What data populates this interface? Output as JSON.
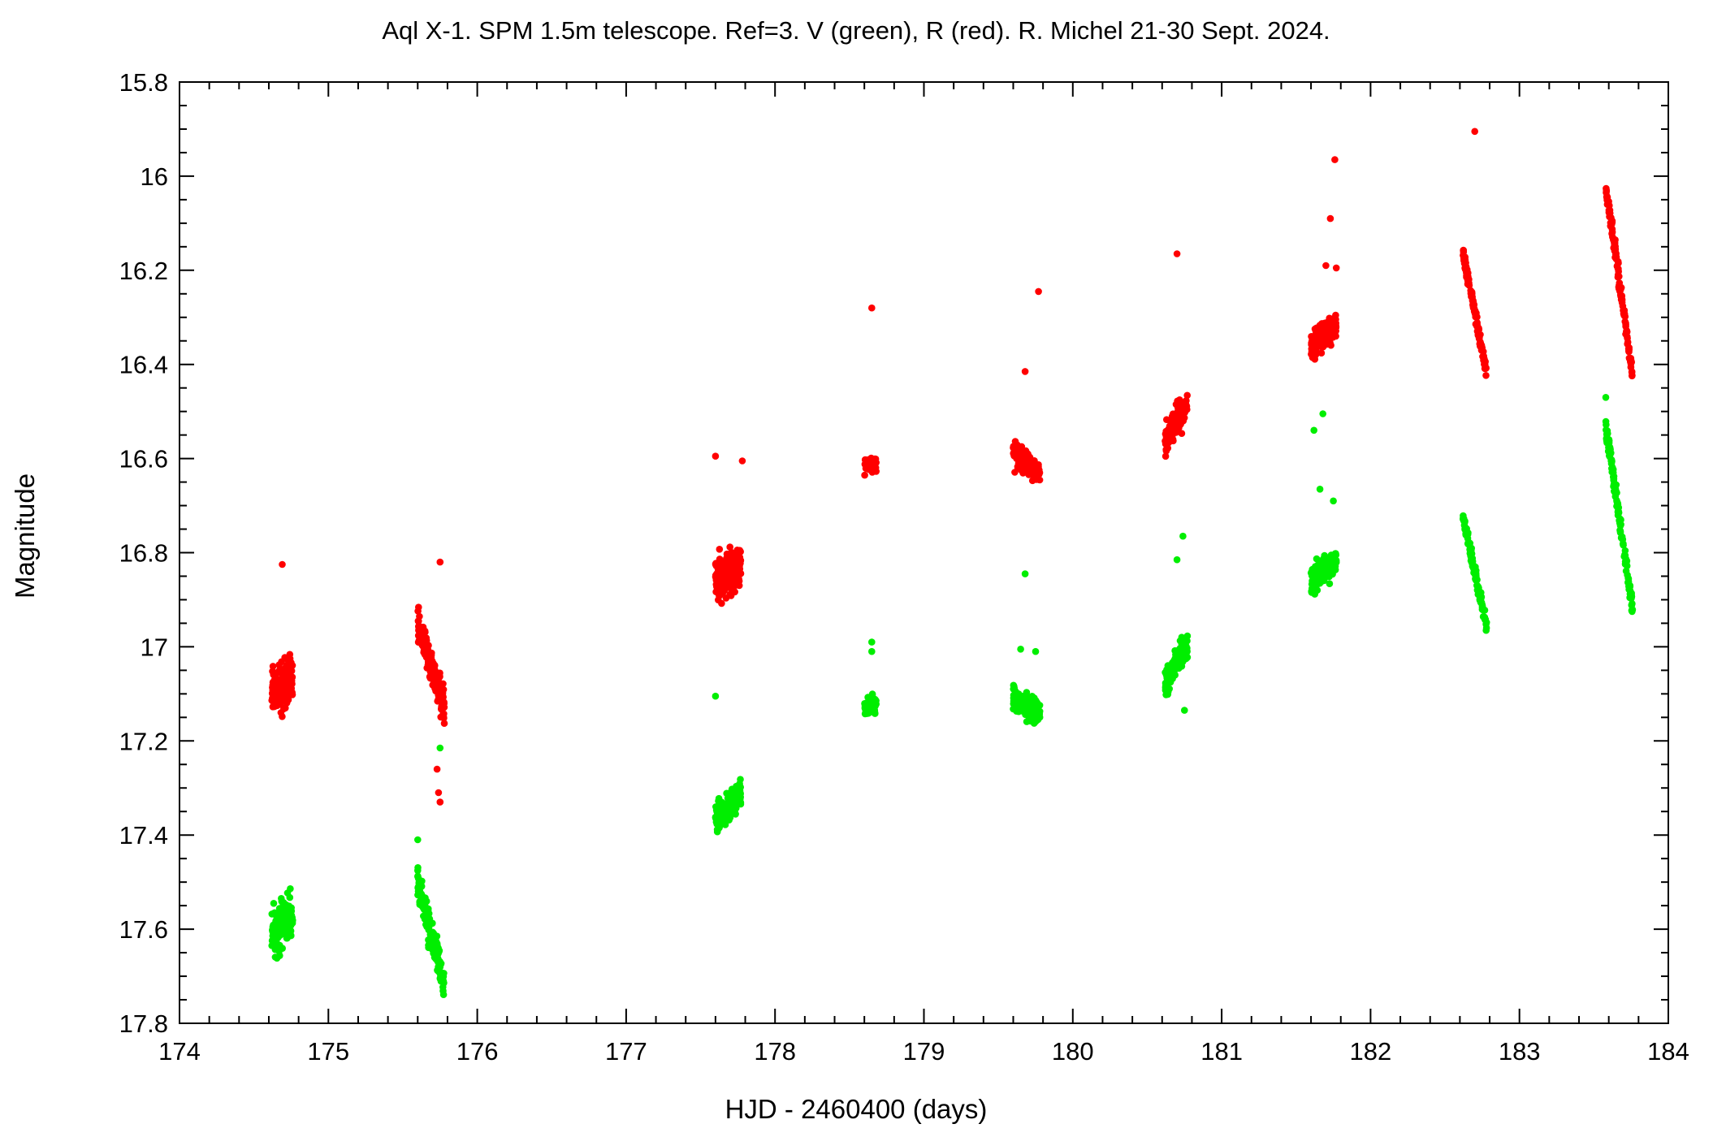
{
  "chart_data": {
    "type": "scatter",
    "title": "Aql X-1. SPM 1.5m telescope. Ref=3. V (green), R (red). R. Michel 21-30 Sept. 2024.",
    "xlabel": "HJD - 2460400 (days)",
    "ylabel": "Magnitude",
    "xlim": [
      174,
      184
    ],
    "ylim": [
      17.8,
      15.8
    ],
    "y_inverted": true,
    "grid": false,
    "xticks": [
      174,
      175,
      176,
      177,
      178,
      179,
      180,
      181,
      182,
      183,
      184
    ],
    "xtick_labels": [
      "174",
      "175",
      "176",
      "177",
      "178",
      "179",
      "180",
      "181",
      "182",
      "183",
      "184"
    ],
    "yticks": [
      15.8,
      16,
      16.2,
      16.4,
      16.6,
      16.8,
      17,
      17.2,
      17.4,
      17.6,
      17.8
    ],
    "ytick_labels": [
      "15.8",
      "16",
      "16.2",
      "16.4",
      "16.6",
      "16.8",
      "17",
      "17.2",
      "17.4",
      "17.6",
      "17.8"
    ],
    "series": [
      {
        "color": "#ff0000",
        "marker": "circle",
        "segments": [
          {
            "x_start": 174.62,
            "x_end": 174.76,
            "y_start": 17.1,
            "y_end": 17.06,
            "spread": 0.05,
            "count": 160
          },
          {
            "x_start": 175.6,
            "x_end": 175.78,
            "y_start": 16.95,
            "y_end": 17.13,
            "spread": 0.035,
            "count": 170
          },
          {
            "x_start": 177.6,
            "x_end": 177.77,
            "y_start": 16.86,
            "y_end": 16.83,
            "spread": 0.045,
            "count": 180
          },
          {
            "x_start": 178.6,
            "x_end": 178.68,
            "y_start": 16.62,
            "y_end": 16.61,
            "spread": 0.015,
            "count": 60
          },
          {
            "x_start": 179.6,
            "x_end": 179.78,
            "y_start": 16.59,
            "y_end": 16.63,
            "spread": 0.025,
            "count": 150
          },
          {
            "x_start": 180.62,
            "x_end": 180.77,
            "y_start": 16.56,
            "y_end": 16.48,
            "spread": 0.03,
            "count": 140
          },
          {
            "x_start": 181.6,
            "x_end": 181.77,
            "y_start": 16.36,
            "y_end": 16.32,
            "spread": 0.03,
            "count": 160
          },
          {
            "x_start": 182.62,
            "x_end": 182.78,
            "y_start": 16.16,
            "y_end": 16.42,
            "spread": 0.015,
            "count": 120
          },
          {
            "x_start": 183.58,
            "x_end": 183.76,
            "y_start": 16.02,
            "y_end": 16.42,
            "spread": 0.02,
            "count": 130
          }
        ],
        "outliers": [
          [
            174.69,
            16.825
          ],
          [
            175.75,
            16.82
          ],
          [
            175.73,
            17.26
          ],
          [
            175.74,
            17.31
          ],
          [
            175.75,
            17.33
          ],
          [
            177.6,
            16.595
          ],
          [
            177.78,
            16.605
          ],
          [
            178.65,
            16.28
          ],
          [
            179.68,
            16.415
          ],
          [
            179.77,
            16.245
          ],
          [
            180.7,
            16.165
          ],
          [
            181.73,
            16.09
          ],
          [
            181.76,
            15.965
          ],
          [
            181.7,
            16.19
          ],
          [
            181.77,
            16.195
          ],
          [
            182.7,
            15.905
          ]
        ]
      },
      {
        "color": "#00ee00",
        "marker": "circle",
        "segments": [
          {
            "x_start": 174.62,
            "x_end": 174.76,
            "y_start": 17.61,
            "y_end": 17.57,
            "spread": 0.05,
            "count": 160
          },
          {
            "x_start": 175.6,
            "x_end": 175.78,
            "y_start": 17.5,
            "y_end": 17.72,
            "spread": 0.035,
            "count": 170
          },
          {
            "x_start": 177.6,
            "x_end": 177.77,
            "y_start": 17.37,
            "y_end": 17.31,
            "spread": 0.03,
            "count": 170
          },
          {
            "x_start": 178.6,
            "x_end": 178.68,
            "y_start": 17.13,
            "y_end": 17.12,
            "spread": 0.02,
            "count": 60
          },
          {
            "x_start": 179.6,
            "x_end": 179.78,
            "y_start": 17.11,
            "y_end": 17.14,
            "spread": 0.025,
            "count": 150
          },
          {
            "x_start": 180.62,
            "x_end": 180.77,
            "y_start": 17.08,
            "y_end": 16.99,
            "spread": 0.03,
            "count": 140
          },
          {
            "x_start": 181.6,
            "x_end": 181.77,
            "y_start": 16.86,
            "y_end": 16.82,
            "spread": 0.03,
            "count": 160
          },
          {
            "x_start": 182.62,
            "x_end": 182.78,
            "y_start": 16.72,
            "y_end": 16.96,
            "spread": 0.015,
            "count": 120
          },
          {
            "x_start": 183.58,
            "x_end": 183.76,
            "y_start": 16.53,
            "y_end": 16.92,
            "spread": 0.02,
            "count": 130
          }
        ],
        "outliers": [
          [
            175.75,
            17.215
          ],
          [
            175.6,
            17.41
          ],
          [
            177.6,
            17.105
          ],
          [
            178.65,
            16.99
          ],
          [
            178.65,
            17.01
          ],
          [
            179.68,
            16.845
          ],
          [
            179.65,
            17.005
          ],
          [
            179.75,
            17.01
          ],
          [
            180.7,
            16.815
          ],
          [
            180.74,
            16.765
          ],
          [
            180.75,
            17.135
          ],
          [
            181.62,
            16.54
          ],
          [
            181.68,
            16.505
          ],
          [
            181.66,
            16.665
          ],
          [
            181.75,
            16.69
          ],
          [
            183.58,
            16.47
          ]
        ]
      }
    ]
  }
}
